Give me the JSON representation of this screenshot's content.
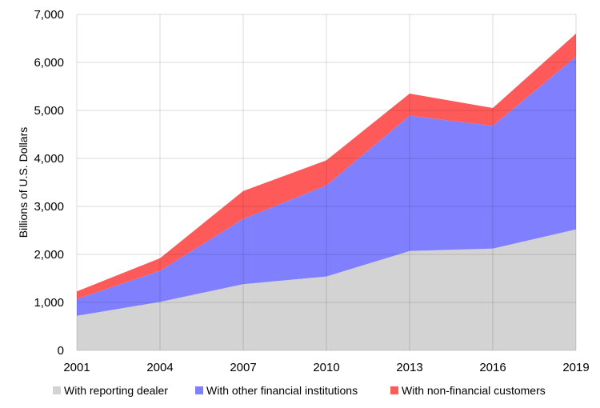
{
  "chart_data": {
    "type": "area",
    "stacked": true,
    "x": [
      2001,
      2004,
      2007,
      2010,
      2013,
      2016,
      2019
    ],
    "series": [
      {
        "name": "With reporting dealer",
        "color": "#d3d3d3",
        "values": [
          720,
          1010,
          1380,
          1540,
          2070,
          2120,
          2520
        ]
      },
      {
        "name": "With other financial institutions",
        "color": "#8080ff",
        "values": [
          350,
          650,
          1360,
          1900,
          2820,
          2560,
          3600
        ]
      },
      {
        "name": "With non-financial customers",
        "color": "#ff5a5a",
        "values": [
          160,
          260,
          580,
          520,
          460,
          370,
          480
        ]
      }
    ],
    "ylabel": "Billions of U.S. Dollars",
    "ylim": [
      0,
      7000
    ],
    "yticks": [
      0,
      1000,
      2000,
      3000,
      4000,
      5000,
      6000,
      7000
    ],
    "ytick_labels": [
      "0",
      "1,000",
      "2,000",
      "3,000",
      "4,000",
      "5,000",
      "6,000",
      "7,000"
    ],
    "xtick_labels": [
      "2001",
      "2004",
      "2007",
      "2010",
      "2013",
      "2016",
      "2019"
    ],
    "grid": true,
    "legend_position": "bottom"
  }
}
